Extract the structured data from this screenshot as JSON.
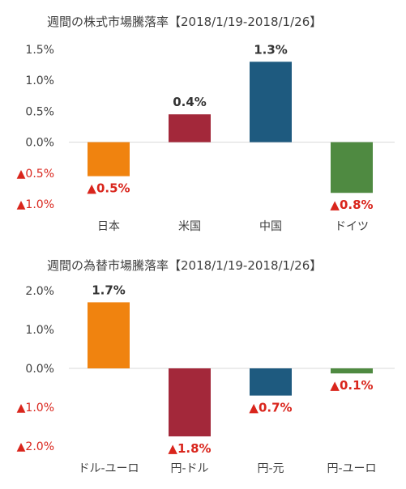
{
  "chart_data": [
    {
      "type": "bar",
      "title": "週間の株式市場騰落率【2018/1/19-2018/1/26】",
      "categories": [
        "日本",
        "米国",
        "中国",
        "ドイツ"
      ],
      "values": [
        -0.55,
        0.45,
        1.3,
        -0.82
      ],
      "data_labels": [
        "▲0.5%",
        "0.4%",
        "1.3%",
        "▲0.8%"
      ],
      "colors": [
        "#f0830f",
        "#a3283a",
        "#1e5a7f",
        "#4f8a41"
      ],
      "ylim": [
        -1.0,
        1.5
      ],
      "yticks": [
        1.5,
        1.0,
        0.5,
        0.0,
        -0.5,
        -1.0
      ],
      "ytick_labels": [
        "1.5%",
        "1.0%",
        "0.5%",
        "0.0%",
        "▲0.5%",
        "▲1.0%"
      ],
      "grid": false,
      "xlabel": "",
      "ylabel": ""
    },
    {
      "type": "bar",
      "title": "週間の為替市場騰落率【2018/1/19-2018/1/26】",
      "categories": [
        "ドル-ユーロ",
        "円-ドル",
        "円-元",
        "円-ユーロ"
      ],
      "values": [
        1.7,
        -1.75,
        -0.7,
        -0.13
      ],
      "data_labels": [
        "1.7%",
        "▲1.8%",
        "▲0.7%",
        "▲0.1%"
      ],
      "colors": [
        "#f0830f",
        "#a3283a",
        "#1e5a7f",
        "#4f8a41"
      ],
      "ylim": [
        -2.0,
        2.0
      ],
      "yticks": [
        2.0,
        1.0,
        0.0,
        -1.0,
        -2.0
      ],
      "ytick_labels": [
        "2.0%",
        "1.0%",
        "0.0%",
        "▲1.0%",
        "▲2.0%"
      ],
      "grid": false,
      "xlabel": "",
      "ylabel": ""
    }
  ],
  "style": {
    "positive_label_color": "#333333",
    "negative_label_color": "#d9251c",
    "axis_text_color": "#404040",
    "negative_tick_color": "#d9251c",
    "zero_line_color": "#d9d9d9"
  }
}
